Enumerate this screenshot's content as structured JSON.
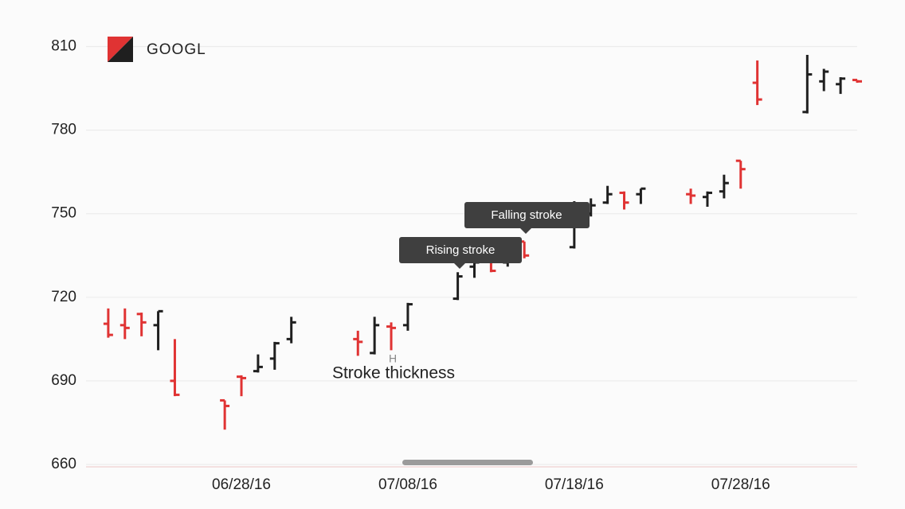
{
  "chart_data": {
    "type": "ohlc",
    "series": [
      {
        "name": "GOOGL",
        "x": [
          "06/20/16",
          "06/21/16",
          "06/22/16",
          "06/23/16",
          "06/24/16",
          "06/27/16",
          "06/28/16",
          "06/29/16",
          "06/30/16",
          "07/01/16",
          "07/05/16",
          "07/06/16",
          "07/07/16",
          "07/08/16",
          "07/11/16",
          "07/12/16",
          "07/13/16",
          "07/14/16",
          "07/15/16",
          "07/18/16",
          "07/19/16",
          "07/20/16",
          "07/21/16",
          "07/22/16",
          "07/25/16",
          "07/26/16",
          "07/27/16",
          "07/28/16",
          "07/29/16",
          "08/01/16",
          "08/02/16",
          "08/03/16",
          "08/04/16"
        ],
        "open": [
          710.5,
          710,
          714,
          710,
          690,
          683,
          691.5,
          693.5,
          698,
          705,
          705,
          700,
          709.5,
          710,
          719.5,
          731,
          734,
          732.5,
          740,
          738,
          750,
          754,
          757.5,
          757,
          757,
          756,
          758,
          769,
          797,
          786.5,
          797.5,
          796.5,
          798
        ],
        "high": [
          716,
          716,
          714.5,
          715,
          705,
          683,
          692,
          699.5,
          704,
          713,
          708,
          713,
          711,
          718,
          729,
          735,
          734,
          736,
          740,
          754.5,
          755.5,
          760,
          758,
          759,
          759,
          758,
          764,
          769,
          805,
          807,
          802,
          799,
          798
        ],
        "low": [
          705.5,
          705,
          706,
          701,
          684.5,
          672.5,
          684.5,
          693,
          694,
          703.5,
          699,
          699.5,
          701,
          708,
          719,
          727,
          729,
          731,
          734,
          737.5,
          749,
          753.5,
          751.5,
          753.5,
          753.5,
          752.5,
          755.5,
          759,
          789,
          786,
          794,
          793,
          797
        ],
        "close": [
          706.5,
          709,
          711,
          715,
          685,
          681,
          691,
          695,
          703.5,
          711,
          704,
          710,
          709,
          717.5,
          727.5,
          732.5,
          729.5,
          735.5,
          735,
          753,
          753,
          757,
          754,
          759,
          756.5,
          757.5,
          761,
          766,
          791,
          800,
          801,
          798.5,
          797.5
        ]
      }
    ],
    "rising_color": "#1f1f1f",
    "falling_color": "#e03333",
    "xlim": [
      "06/19/16",
      "08/04/16"
    ],
    "xticks": [
      "06/28/16",
      "07/08/16",
      "07/18/16",
      "07/28/16"
    ],
    "ylim": [
      660,
      821
    ],
    "yticks": [
      660,
      690,
      720,
      750,
      780,
      810
    ],
    "grid": true,
    "annotations": [
      "Rising stroke",
      "Falling stroke",
      "Stroke thickness",
      "H"
    ]
  }
}
